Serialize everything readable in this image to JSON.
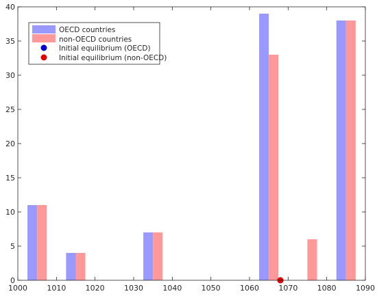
{
  "chart_data": {
    "type": "bar",
    "categories": [
      1005,
      1015,
      1025,
      1035,
      1045,
      1055,
      1065,
      1075,
      1085
    ],
    "series": [
      {
        "name": "OECD countries",
        "color": "#9999ff",
        "values": [
          11,
          4,
          0,
          7,
          0,
          0,
          39,
          0,
          38
        ]
      },
      {
        "name": "non-OECD countries",
        "color": "#ff9999",
        "values": [
          11,
          4,
          0,
          7,
          0,
          0,
          33,
          6,
          38
        ]
      }
    ],
    "markers": [
      {
        "name": "Initial equilibrium (OECD)",
        "color": "#0000cc",
        "x": 1068,
        "y": 0
      },
      {
        "name": "Initial equilibrium (non-OECD)",
        "color": "#e00000",
        "x": 1068,
        "y": 0
      }
    ],
    "xlim": [
      1000,
      1090
    ],
    "ylim": [
      0,
      40
    ],
    "xticks": [
      "1000",
      "1010",
      "1020",
      "1030",
      "1040",
      "1050",
      "1060",
      "1070",
      "1080",
      "1090"
    ],
    "yticks": [
      "0",
      "5",
      "10",
      "15",
      "20",
      "25",
      "30",
      "35",
      "40"
    ],
    "legend_position": "top-left",
    "grid": false,
    "title": "",
    "xlabel": "",
    "ylabel": ""
  }
}
